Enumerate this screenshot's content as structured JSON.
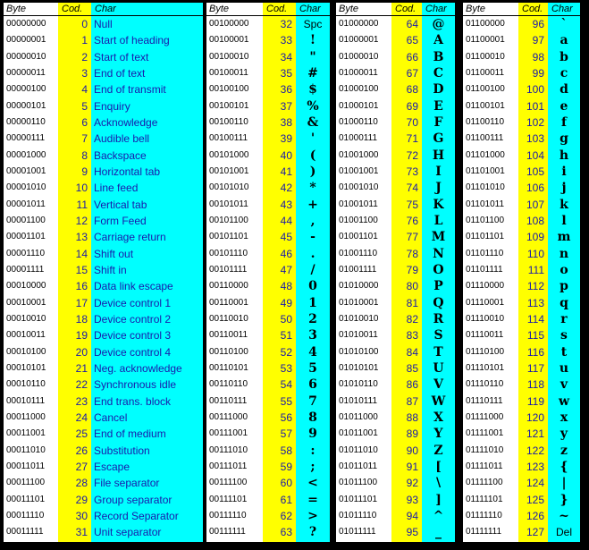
{
  "headers": {
    "byte": "Byte",
    "cod": "Cod.",
    "char": "Char"
  },
  "blocks": [
    {
      "rows": [
        [
          "00000000",
          "0",
          "Null"
        ],
        [
          "00000001",
          "1",
          "Start of heading"
        ],
        [
          "00000010",
          "2",
          "Start of text"
        ],
        [
          "00000011",
          "3",
          "End of text"
        ],
        [
          "00000100",
          "4",
          "End of transmit"
        ],
        [
          "00000101",
          "5",
          "Enquiry"
        ],
        [
          "00000110",
          "6",
          "Acknowledge"
        ],
        [
          "00000111",
          "7",
          "Audible bell"
        ],
        [
          "00001000",
          "8",
          "Backspace"
        ],
        [
          "00001001",
          "9",
          "Horizontal tab"
        ],
        [
          "00001010",
          "10",
          "Line feed"
        ],
        [
          "00001011",
          "11",
          "Vertical tab"
        ],
        [
          "00001100",
          "12",
          "Form Feed"
        ],
        [
          "00001101",
          "13",
          "Carriage return"
        ],
        [
          "00001110",
          "14",
          "Shift out"
        ],
        [
          "00001111",
          "15",
          "Shift in"
        ],
        [
          "00010000",
          "16",
          "Data link escape"
        ],
        [
          "00010001",
          "17",
          "Device control 1"
        ],
        [
          "00010010",
          "18",
          "Device control 2"
        ],
        [
          "00010011",
          "19",
          "Device control 3"
        ],
        [
          "00010100",
          "20",
          "Device control 4"
        ],
        [
          "00010101",
          "21",
          "Neg. acknowledge"
        ],
        [
          "00010110",
          "22",
          "Synchronous idle"
        ],
        [
          "00010111",
          "23",
          "End trans. block"
        ],
        [
          "00011000",
          "24",
          "Cancel"
        ],
        [
          "00011001",
          "25",
          "End of medium"
        ],
        [
          "00011010",
          "26",
          "Substitution"
        ],
        [
          "00011011",
          "27",
          "Escape"
        ],
        [
          "00011100",
          "28",
          "File separator"
        ],
        [
          "00011101",
          "29",
          "Group separator"
        ],
        [
          "00011110",
          "30",
          "Record Separator"
        ],
        [
          "00011111",
          "31",
          "Unit separator"
        ]
      ]
    },
    {
      "rows": [
        [
          "00100000",
          "32",
          "Spc"
        ],
        [
          "00100001",
          "33",
          "!"
        ],
        [
          "00100010",
          "34",
          "\""
        ],
        [
          "00100011",
          "35",
          "#"
        ],
        [
          "00100100",
          "36",
          "$"
        ],
        [
          "00100101",
          "37",
          "%"
        ],
        [
          "00100110",
          "38",
          "&"
        ],
        [
          "00100111",
          "39",
          "'"
        ],
        [
          "00101000",
          "40",
          "("
        ],
        [
          "00101001",
          "41",
          ")"
        ],
        [
          "00101010",
          "42",
          "*"
        ],
        [
          "00101011",
          "43",
          "+"
        ],
        [
          "00101100",
          "44",
          ","
        ],
        [
          "00101101",
          "45",
          "-"
        ],
        [
          "00101110",
          "46",
          "."
        ],
        [
          "00101111",
          "47",
          "/"
        ],
        [
          "00110000",
          "48",
          "0"
        ],
        [
          "00110001",
          "49",
          "1"
        ],
        [
          "00110010",
          "50",
          "2"
        ],
        [
          "00110011",
          "51",
          "3"
        ],
        [
          "00110100",
          "52",
          "4"
        ],
        [
          "00110101",
          "53",
          "5"
        ],
        [
          "00110110",
          "54",
          "6"
        ],
        [
          "00110111",
          "55",
          "7"
        ],
        [
          "00111000",
          "56",
          "8"
        ],
        [
          "00111001",
          "57",
          "9"
        ],
        [
          "00111010",
          "58",
          ":"
        ],
        [
          "00111011",
          "59",
          ";"
        ],
        [
          "00111100",
          "60",
          "<"
        ],
        [
          "00111101",
          "61",
          "="
        ],
        [
          "00111110",
          "62",
          ">"
        ],
        [
          "00111111",
          "63",
          "?"
        ]
      ]
    },
    {
      "rows": [
        [
          "01000000",
          "64",
          "@"
        ],
        [
          "01000001",
          "65",
          "A"
        ],
        [
          "01000010",
          "66",
          "B"
        ],
        [
          "01000011",
          "67",
          "C"
        ],
        [
          "01000100",
          "68",
          "D"
        ],
        [
          "01000101",
          "69",
          "E"
        ],
        [
          "01000110",
          "70",
          "F"
        ],
        [
          "01000111",
          "71",
          "G"
        ],
        [
          "01001000",
          "72",
          "H"
        ],
        [
          "01001001",
          "73",
          "I"
        ],
        [
          "01001010",
          "74",
          "J"
        ],
        [
          "01001011",
          "75",
          "K"
        ],
        [
          "01001100",
          "76",
          "L"
        ],
        [
          "01001101",
          "77",
          "M"
        ],
        [
          "01001110",
          "78",
          "N"
        ],
        [
          "01001111",
          "79",
          "O"
        ],
        [
          "01010000",
          "80",
          "P"
        ],
        [
          "01010001",
          "81",
          "Q"
        ],
        [
          "01010010",
          "82",
          "R"
        ],
        [
          "01010011",
          "83",
          "S"
        ],
        [
          "01010100",
          "84",
          "T"
        ],
        [
          "01010101",
          "85",
          "U"
        ],
        [
          "01010110",
          "86",
          "V"
        ],
        [
          "01010111",
          "87",
          "W"
        ],
        [
          "01011000",
          "88",
          "X"
        ],
        [
          "01011001",
          "89",
          "Y"
        ],
        [
          "01011010",
          "90",
          "Z"
        ],
        [
          "01011011",
          "91",
          "["
        ],
        [
          "01011100",
          "92",
          "\\"
        ],
        [
          "01011101",
          "93",
          "]"
        ],
        [
          "01011110",
          "94",
          "^"
        ],
        [
          "01011111",
          "95",
          "_"
        ]
      ]
    },
    {
      "rows": [
        [
          "01100000",
          "96",
          "`"
        ],
        [
          "01100001",
          "97",
          "a"
        ],
        [
          "01100010",
          "98",
          "b"
        ],
        [
          "01100011",
          "99",
          "c"
        ],
        [
          "01100100",
          "100",
          "d"
        ],
        [
          "01100101",
          "101",
          "e"
        ],
        [
          "01100110",
          "102",
          "f"
        ],
        [
          "01100111",
          "103",
          "g"
        ],
        [
          "01101000",
          "104",
          "h"
        ],
        [
          "01101001",
          "105",
          "i"
        ],
        [
          "01101010",
          "106",
          "j"
        ],
        [
          "01101011",
          "107",
          "k"
        ],
        [
          "01101100",
          "108",
          "l"
        ],
        [
          "01101101",
          "109",
          "m"
        ],
        [
          "01101110",
          "110",
          "n"
        ],
        [
          "01101111",
          "111",
          "o"
        ],
        [
          "01110000",
          "112",
          "p"
        ],
        [
          "01110001",
          "113",
          "q"
        ],
        [
          "01110010",
          "114",
          "r"
        ],
        [
          "01110011",
          "115",
          "s"
        ],
        [
          "01110100",
          "116",
          "t"
        ],
        [
          "01110101",
          "117",
          "u"
        ],
        [
          "01110110",
          "118",
          "v"
        ],
        [
          "01110111",
          "119",
          "w"
        ],
        [
          "01111000",
          "120",
          "x"
        ],
        [
          "01111001",
          "121",
          "y"
        ],
        [
          "01111010",
          "122",
          "z"
        ],
        [
          "01111011",
          "123",
          "{"
        ],
        [
          "01111100",
          "124",
          "|"
        ],
        [
          "01111101",
          "125",
          "}"
        ],
        [
          "01111110",
          "126",
          "~"
        ],
        [
          "01111111",
          "127",
          "Del"
        ]
      ]
    }
  ],
  "colors": {
    "byte_bg": "#ffffff",
    "cod_bg": "#ffff00",
    "char_bg": "#00ffff",
    "text_blue": "#1a1aaa"
  }
}
